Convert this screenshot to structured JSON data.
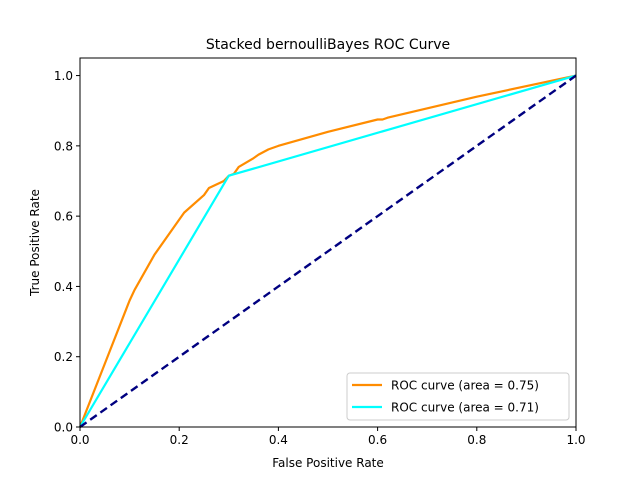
{
  "chart_data": {
    "type": "line",
    "title": "Stacked bernoulliBayes ROC Curve",
    "xlabel": "False Positive Rate",
    "ylabel": "True Positive Rate",
    "xlim": [
      0.0,
      1.0
    ],
    "ylim": [
      0.0,
      1.05
    ],
    "xticks": [
      0.0,
      0.2,
      0.4,
      0.6,
      0.8,
      1.0
    ],
    "yticks": [
      0.0,
      0.2,
      0.4,
      0.6,
      0.8,
      1.0
    ],
    "xtick_labels": [
      "0.0",
      "0.2",
      "0.4",
      "0.6",
      "0.8",
      "1.0"
    ],
    "ytick_labels": [
      "0.0",
      "0.2",
      "0.4",
      "0.6",
      "0.8",
      "1.0"
    ],
    "grid": false,
    "legend_position": "lower-right",
    "series": [
      {
        "name": "ROC curve (area = 0.75)",
        "color": "#ff8c00",
        "style": "solid",
        "x": [
          0.0,
          0.05,
          0.1,
          0.11,
          0.15,
          0.2,
          0.21,
          0.25,
          0.26,
          0.29,
          0.3,
          0.31,
          0.32,
          0.35,
          0.36,
          0.38,
          0.4,
          0.5,
          0.6,
          0.61,
          0.62,
          0.8,
          1.0
        ],
        "y": [
          0.0,
          0.18,
          0.36,
          0.39,
          0.49,
          0.59,
          0.61,
          0.66,
          0.68,
          0.7,
          0.715,
          0.72,
          0.74,
          0.765,
          0.775,
          0.79,
          0.8,
          0.84,
          0.875,
          0.875,
          0.88,
          0.94,
          1.0
        ]
      },
      {
        "name": "ROC curve (area = 0.71)",
        "color": "#00ffff",
        "style": "solid",
        "x": [
          0.0,
          0.3,
          1.0
        ],
        "y": [
          0.0,
          0.715,
          1.0
        ]
      },
      {
        "color": "#000080",
        "style": "dashed",
        "x": [
          0.0,
          1.0
        ],
        "y": [
          0.0,
          1.0
        ]
      }
    ]
  }
}
